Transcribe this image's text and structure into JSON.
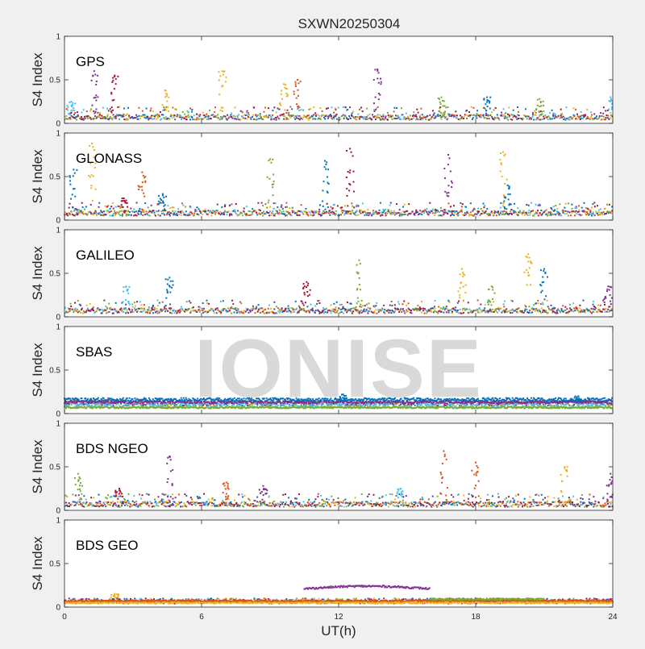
{
  "chart_data": {
    "type": "scatter",
    "title": "SXWN20250304",
    "xlabel": "UT(h)",
    "ylabel": "S4 Index",
    "xlim": [
      0,
      24
    ],
    "ylim": [
      0,
      1
    ],
    "xticks": [
      "0",
      "6",
      "12",
      "18",
      "24"
    ],
    "yticks": [
      "0",
      "0.5",
      "1"
    ],
    "grid": false,
    "watermark": "IONISE",
    "series_colors": [
      "#0072BD",
      "#D95319",
      "#EDB120",
      "#7E2F8E",
      "#77AC30",
      "#4DBEEE",
      "#A2142F"
    ],
    "panels": [
      {
        "name": "GPS",
        "baseline": 0.07,
        "spikes": [
          {
            "x": 0.3,
            "y": 0.25,
            "c": 5
          },
          {
            "x": 1.3,
            "y": 0.6,
            "c": 3
          },
          {
            "x": 2.2,
            "y": 0.55,
            "c": 6
          },
          {
            "x": 4.4,
            "y": 0.38,
            "c": 2
          },
          {
            "x": 6.9,
            "y": 0.6,
            "c": 2
          },
          {
            "x": 9.6,
            "y": 0.45,
            "c": 2
          },
          {
            "x": 10.2,
            "y": 0.5,
            "c": 1
          },
          {
            "x": 13.7,
            "y": 0.62,
            "c": 3
          },
          {
            "x": 16.5,
            "y": 0.3,
            "c": 4
          },
          {
            "x": 18.5,
            "y": 0.3,
            "c": 0
          },
          {
            "x": 20.8,
            "y": 0.28,
            "c": 4
          },
          {
            "x": 23.9,
            "y": 0.3,
            "c": 5
          }
        ]
      },
      {
        "name": "GLONASS",
        "baseline": 0.08,
        "spikes": [
          {
            "x": 1.2,
            "y": 0.88,
            "c": 2
          },
          {
            "x": 0.4,
            "y": 0.58,
            "c": 0
          },
          {
            "x": 3.4,
            "y": 0.55,
            "c": 1
          },
          {
            "x": 9.0,
            "y": 0.7,
            "c": 4
          },
          {
            "x": 11.4,
            "y": 0.68,
            "c": 0
          },
          {
            "x": 12.5,
            "y": 0.82,
            "c": 6
          },
          {
            "x": 16.8,
            "y": 0.75,
            "c": 3
          },
          {
            "x": 19.2,
            "y": 0.78,
            "c": 2
          },
          {
            "x": 19.4,
            "y": 0.4,
            "c": 0
          },
          {
            "x": 4.3,
            "y": 0.3,
            "c": 0
          },
          {
            "x": 2.6,
            "y": 0.25,
            "c": 6
          }
        ]
      },
      {
        "name": "GALILEO",
        "baseline": 0.07,
        "spikes": [
          {
            "x": 2.7,
            "y": 0.35,
            "c": 5
          },
          {
            "x": 4.6,
            "y": 0.45,
            "c": 0
          },
          {
            "x": 10.6,
            "y": 0.4,
            "c": 6
          },
          {
            "x": 12.9,
            "y": 0.65,
            "c": 4
          },
          {
            "x": 17.4,
            "y": 0.55,
            "c": 2
          },
          {
            "x": 18.7,
            "y": 0.35,
            "c": 4
          },
          {
            "x": 20.3,
            "y": 0.72,
            "c": 2
          },
          {
            "x": 21.0,
            "y": 0.55,
            "c": 0
          },
          {
            "x": 23.8,
            "y": 0.35,
            "c": 3
          }
        ]
      },
      {
        "name": "SBAS",
        "baseline": 0.12,
        "spikes": [
          {
            "x": 12.2,
            "y": 0.22,
            "c": 0
          },
          {
            "x": 22.5,
            "y": 0.2,
            "c": 0
          }
        ]
      },
      {
        "name": "BDS NGEO",
        "baseline": 0.07,
        "spikes": [
          {
            "x": 0.6,
            "y": 0.42,
            "c": 4
          },
          {
            "x": 2.4,
            "y": 0.25,
            "c": 6
          },
          {
            "x": 4.6,
            "y": 0.62,
            "c": 3
          },
          {
            "x": 7.1,
            "y": 0.32,
            "c": 1
          },
          {
            "x": 8.7,
            "y": 0.28,
            "c": 3
          },
          {
            "x": 14.7,
            "y": 0.25,
            "c": 5
          },
          {
            "x": 16.6,
            "y": 0.68,
            "c": 1
          },
          {
            "x": 18.0,
            "y": 0.55,
            "c": 1
          },
          {
            "x": 21.9,
            "y": 0.5,
            "c": 2
          },
          {
            "x": 23.9,
            "y": 0.42,
            "c": 3
          }
        ]
      },
      {
        "name": "BDS GEO",
        "baseline": 0.07,
        "arc": {
          "x0": 10.5,
          "x1": 16.0,
          "y": 0.23,
          "c": 3
        },
        "spikes": [
          {
            "x": 2.2,
            "y": 0.15,
            "c": 2
          }
        ]
      }
    ]
  }
}
